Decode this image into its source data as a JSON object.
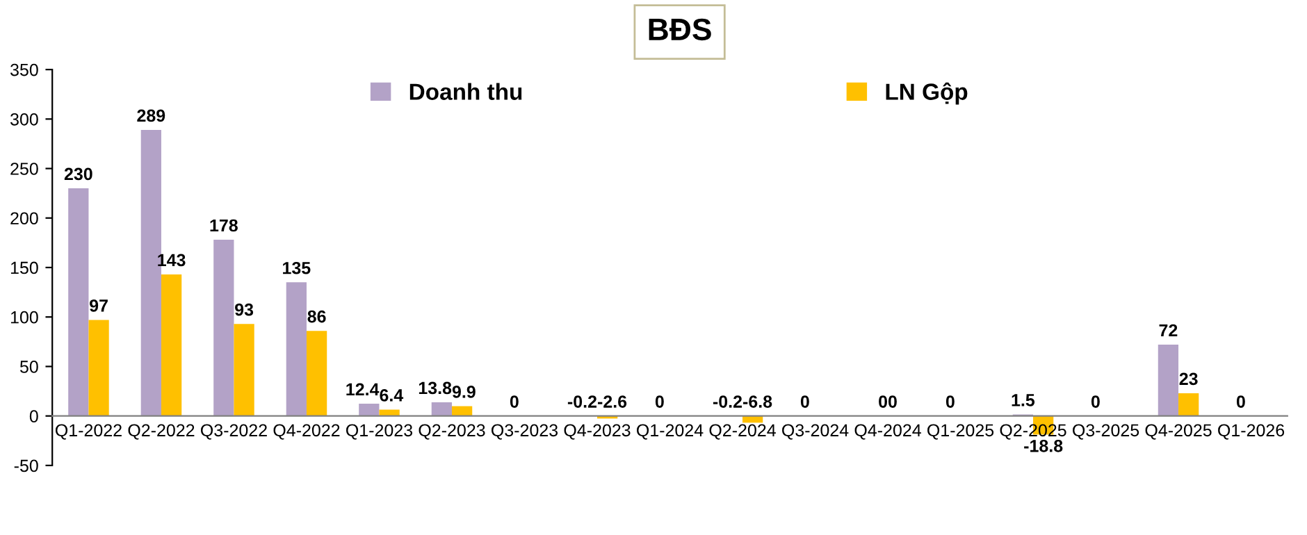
{
  "chart_data": {
    "type": "bar",
    "title": "BĐS",
    "categories": [
      "Q1-2022",
      "Q2-2022",
      "Q3-2022",
      "Q4-2022",
      "Q1-2023",
      "Q2-2023",
      "Q3-2023",
      "Q4-2023",
      "Q1-2024",
      "Q2-2024",
      "Q3-2024",
      "Q4-2024",
      "Q1-2025",
      "Q2-2025",
      "Q3-2025",
      "Q4-2025",
      "Q1-2026"
    ],
    "series": [
      {
        "name": "Doanh thu",
        "color": "#b3a2c7",
        "values": [
          230,
          289,
          178,
          135,
          12.4,
          13.8,
          0,
          -0.2,
          0,
          -0.2,
          0,
          0,
          0,
          1.5,
          0,
          72,
          0
        ],
        "value_labels": [
          "230",
          "289",
          "178",
          "135",
          "12.4",
          "13.8",
          "0",
          "-0.2",
          "0",
          "-0.2",
          "0",
          "0",
          "0",
          "1.5",
          "0",
          "72",
          "0"
        ]
      },
      {
        "name": "LN Gộp",
        "color": "#ffc000",
        "values": [
          97,
          143,
          93,
          86,
          6.4,
          9.9,
          0,
          -2.6,
          0,
          -6.8,
          0,
          0,
          0,
          -18.8,
          0,
          23,
          0
        ],
        "value_labels": [
          "97",
          "143",
          "93",
          "86",
          "6.4",
          "9.9",
          null,
          "-2.6",
          null,
          "-6.8",
          null,
          "0",
          null,
          "-18.8",
          null,
          "23",
          null
        ]
      }
    ],
    "ylim": [
      -50,
      350
    ],
    "yticks": [
      -50,
      0,
      50,
      100,
      150,
      200,
      250,
      300,
      350
    ],
    "grid": false,
    "legend": "top"
  }
}
